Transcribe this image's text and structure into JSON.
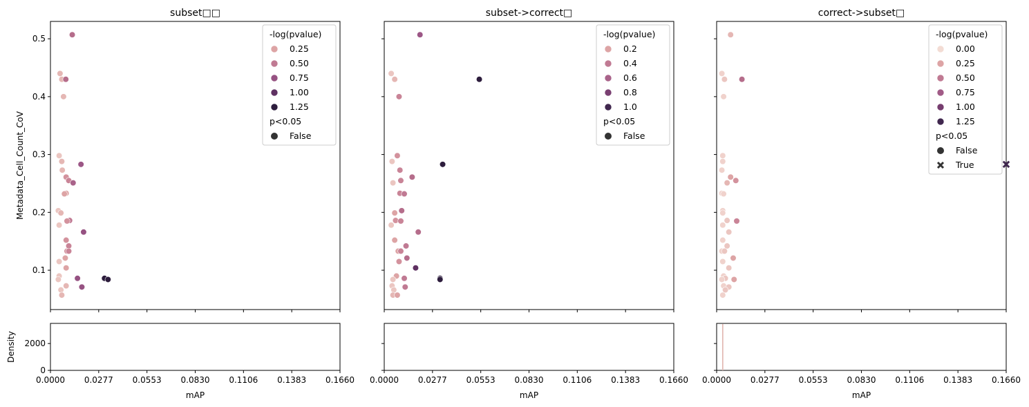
{
  "chart_data": [
    {
      "type": "scatter",
      "title": "subset□□",
      "xlabel": "mAP",
      "ylabel": "Metadata_Cell_Count_CoV",
      "xlim": [
        0,
        0.166
      ],
      "ylim": [
        0.032,
        0.53
      ],
      "xticks": [
        "0.0000",
        "0.0277",
        "0.0553",
        "0.0830",
        "0.1106",
        "0.1383",
        "0.1660"
      ],
      "yticks": [
        "0.1",
        "0.2",
        "0.3",
        "0.4",
        "0.5"
      ],
      "grid": false,
      "legend": {
        "placement": "top-right",
        "hue_title": "-log(pvalue)",
        "hue_entries": [
          {
            "label": "0.25",
            "color": "#dda4a5"
          },
          {
            "label": "0.50",
            "color": "#c07a93"
          },
          {
            "label": "0.75",
            "color": "#965282"
          },
          {
            "label": "1.00",
            "color": "#5f3162"
          },
          {
            "label": "1.25",
            "color": "#2d1d3d"
          }
        ],
        "style_title": "p<0.05",
        "style_entries": [
          {
            "label": "False",
            "marker": "circle"
          }
        ]
      },
      "points": [
        {
          "x": 0.0125,
          "y": 0.507,
          "color": "#b56d8b",
          "marker": "circle"
        },
        {
          "x": 0.0055,
          "y": 0.44,
          "color": "#e5b7b4",
          "marker": "circle"
        },
        {
          "x": 0.0065,
          "y": 0.43,
          "color": "#e5b7b4",
          "marker": "circle"
        },
        {
          "x": 0.0088,
          "y": 0.43,
          "color": "#b56d8b",
          "marker": "circle"
        },
        {
          "x": 0.0075,
          "y": 0.4,
          "color": "#e5b7b4",
          "marker": "circle"
        },
        {
          "x": 0.005,
          "y": 0.298,
          "color": "#ebc6c1",
          "marker": "circle"
        },
        {
          "x": 0.0065,
          "y": 0.288,
          "color": "#e5b7b4",
          "marker": "circle"
        },
        {
          "x": 0.0175,
          "y": 0.283,
          "color": "#9c5786",
          "marker": "circle"
        },
        {
          "x": 0.0068,
          "y": 0.273,
          "color": "#e5b7b4",
          "marker": "circle"
        },
        {
          "x": 0.009,
          "y": 0.261,
          "color": "#d3929d",
          "marker": "circle"
        },
        {
          "x": 0.0105,
          "y": 0.255,
          "color": "#c98497",
          "marker": "circle"
        },
        {
          "x": 0.013,
          "y": 0.251,
          "color": "#a9638a",
          "marker": "circle"
        },
        {
          "x": 0.009,
          "y": 0.233,
          "color": "#dda4a5",
          "marker": "circle"
        },
        {
          "x": 0.008,
          "y": 0.232,
          "color": "#dda4a5",
          "marker": "circle"
        },
        {
          "x": 0.0045,
          "y": 0.203,
          "color": "#ebc6c1",
          "marker": "circle"
        },
        {
          "x": 0.006,
          "y": 0.199,
          "color": "#e5b7b4",
          "marker": "circle"
        },
        {
          "x": 0.011,
          "y": 0.186,
          "color": "#c07a93",
          "marker": "circle"
        },
        {
          "x": 0.0095,
          "y": 0.185,
          "color": "#d3929d",
          "marker": "circle"
        },
        {
          "x": 0.005,
          "y": 0.178,
          "color": "#ebc6c1",
          "marker": "circle"
        },
        {
          "x": 0.019,
          "y": 0.166,
          "color": "#965282",
          "marker": "circle"
        },
        {
          "x": 0.009,
          "y": 0.152,
          "color": "#d3929d",
          "marker": "circle"
        },
        {
          "x": 0.0105,
          "y": 0.142,
          "color": "#c98497",
          "marker": "circle"
        },
        {
          "x": 0.0095,
          "y": 0.133,
          "color": "#d3929d",
          "marker": "circle"
        },
        {
          "x": 0.0105,
          "y": 0.133,
          "color": "#c98497",
          "marker": "circle"
        },
        {
          "x": 0.0085,
          "y": 0.121,
          "color": "#dda4a5",
          "marker": "circle"
        },
        {
          "x": 0.005,
          "y": 0.115,
          "color": "#ebc6c1",
          "marker": "circle"
        },
        {
          "x": 0.009,
          "y": 0.104,
          "color": "#dda4a5",
          "marker": "circle"
        },
        {
          "x": 0.005,
          "y": 0.09,
          "color": "#ebc6c1",
          "marker": "circle"
        },
        {
          "x": 0.0155,
          "y": 0.086,
          "color": "#965282",
          "marker": "circle"
        },
        {
          "x": 0.031,
          "y": 0.086,
          "color": "#2d1d3d",
          "marker": "circle"
        },
        {
          "x": 0.033,
          "y": 0.084,
          "color": "#2d1d3d",
          "marker": "circle"
        },
        {
          "x": 0.0045,
          "y": 0.084,
          "color": "#ebc6c1",
          "marker": "circle"
        },
        {
          "x": 0.009,
          "y": 0.073,
          "color": "#e5b7b4",
          "marker": "circle"
        },
        {
          "x": 0.018,
          "y": 0.071,
          "color": "#965282",
          "marker": "circle"
        },
        {
          "x": 0.006,
          "y": 0.066,
          "color": "#ebc6c1",
          "marker": "circle"
        },
        {
          "x": 0.0065,
          "y": 0.057,
          "color": "#e5b7b4",
          "marker": "circle"
        }
      ],
      "density": {
        "ylabel": "Density",
        "yticks": [
          "0",
          "2000"
        ],
        "ylim": [
          0,
          3500
        ],
        "spikes": []
      }
    },
    {
      "type": "scatter",
      "title": "subset->correct□",
      "xlabel": "mAP",
      "ylabel": "",
      "xlim": [
        0,
        0.166
      ],
      "ylim": [
        0.032,
        0.53
      ],
      "xticks": [
        "0.0000",
        "0.0277",
        "0.0553",
        "0.0830",
        "0.1106",
        "0.1383",
        "0.1660"
      ],
      "yticks": [],
      "grid": false,
      "legend": {
        "placement": "top-right",
        "hue_title": "-log(pvalue)",
        "hue_entries": [
          {
            "label": "0.2",
            "color": "#dda4a5"
          },
          {
            "label": "0.4",
            "color": "#c07a93"
          },
          {
            "label": "0.6",
            "color": "#a9638a"
          },
          {
            "label": "0.8",
            "color": "#7a4072"
          },
          {
            "label": "1.0",
            "color": "#40274e"
          }
        ],
        "style_title": "p<0.05",
        "style_entries": [
          {
            "label": "False",
            "marker": "circle"
          }
        ]
      },
      "points": [
        {
          "x": 0.0205,
          "y": 0.507,
          "color": "#9c5786",
          "marker": "circle"
        },
        {
          "x": 0.004,
          "y": 0.44,
          "color": "#ebc6c1",
          "marker": "circle"
        },
        {
          "x": 0.006,
          "y": 0.43,
          "color": "#e5b7b4",
          "marker": "circle"
        },
        {
          "x": 0.0545,
          "y": 0.43,
          "color": "#2d1d3d",
          "marker": "circle"
        },
        {
          "x": 0.0085,
          "y": 0.4,
          "color": "#c98497",
          "marker": "circle"
        },
        {
          "x": 0.0075,
          "y": 0.298,
          "color": "#d3929d",
          "marker": "circle"
        },
        {
          "x": 0.0045,
          "y": 0.288,
          "color": "#ebc6c1",
          "marker": "circle"
        },
        {
          "x": 0.0335,
          "y": 0.283,
          "color": "#2d1d3d",
          "marker": "circle"
        },
        {
          "x": 0.009,
          "y": 0.273,
          "color": "#c98497",
          "marker": "circle"
        },
        {
          "x": 0.016,
          "y": 0.261,
          "color": "#b56d8b",
          "marker": "circle"
        },
        {
          "x": 0.0095,
          "y": 0.255,
          "color": "#c98497",
          "marker": "circle"
        },
        {
          "x": 0.005,
          "y": 0.251,
          "color": "#ebc6c1",
          "marker": "circle"
        },
        {
          "x": 0.009,
          "y": 0.233,
          "color": "#c98497",
          "marker": "circle"
        },
        {
          "x": 0.0115,
          "y": 0.232,
          "color": "#c07a93",
          "marker": "circle"
        },
        {
          "x": 0.01,
          "y": 0.203,
          "color": "#b56d8b",
          "marker": "circle"
        },
        {
          "x": 0.006,
          "y": 0.199,
          "color": "#dda4a5",
          "marker": "circle"
        },
        {
          "x": 0.0065,
          "y": 0.186,
          "color": "#d3929d",
          "marker": "circle"
        },
        {
          "x": 0.0095,
          "y": 0.185,
          "color": "#c98497",
          "marker": "circle"
        },
        {
          "x": 0.004,
          "y": 0.178,
          "color": "#ebc6c1",
          "marker": "circle"
        },
        {
          "x": 0.0195,
          "y": 0.166,
          "color": "#b56d8b",
          "marker": "circle"
        },
        {
          "x": 0.006,
          "y": 0.152,
          "color": "#dda4a5",
          "marker": "circle"
        },
        {
          "x": 0.0125,
          "y": 0.142,
          "color": "#c07a93",
          "marker": "circle"
        },
        {
          "x": 0.008,
          "y": 0.133,
          "color": "#dda4a5",
          "marker": "circle"
        },
        {
          "x": 0.0095,
          "y": 0.133,
          "color": "#c98497",
          "marker": "circle"
        },
        {
          "x": 0.013,
          "y": 0.121,
          "color": "#b56d8b",
          "marker": "circle"
        },
        {
          "x": 0.0085,
          "y": 0.115,
          "color": "#d3929d",
          "marker": "circle"
        },
        {
          "x": 0.018,
          "y": 0.104,
          "color": "#5f3162",
          "marker": "circle"
        },
        {
          "x": 0.007,
          "y": 0.09,
          "color": "#dda4a5",
          "marker": "circle"
        },
        {
          "x": 0.032,
          "y": 0.086,
          "color": "#2d1d3d",
          "marker": "circle"
        },
        {
          "x": 0.0115,
          "y": 0.086,
          "color": "#c07a93",
          "marker": "circle"
        },
        {
          "x": 0.032,
          "y": 0.084,
          "color": "#2d1d3d",
          "marker": "circle"
        },
        {
          "x": 0.005,
          "y": 0.084,
          "color": "#ebc6c1",
          "marker": "circle"
        },
        {
          "x": 0.0045,
          "y": 0.073,
          "color": "#ebc6c1",
          "marker": "circle"
        },
        {
          "x": 0.012,
          "y": 0.071,
          "color": "#c07a93",
          "marker": "circle"
        },
        {
          "x": 0.0055,
          "y": 0.066,
          "color": "#ebc6c1",
          "marker": "circle"
        },
        {
          "x": 0.005,
          "y": 0.057,
          "color": "#e5b7b4",
          "marker": "circle"
        },
        {
          "x": 0.0075,
          "y": 0.057,
          "color": "#dda4a5",
          "marker": "circle"
        }
      ],
      "density": {
        "ylabel": "",
        "yticks": [],
        "ylim": [
          0,
          3500
        ],
        "spikes": []
      }
    },
    {
      "type": "scatter",
      "title": "correct->subset□",
      "xlabel": "mAP",
      "ylabel": "",
      "xlim": [
        0,
        0.166
      ],
      "ylim": [
        0.032,
        0.53
      ],
      "xticks": [
        "0.0000",
        "0.0277",
        "0.0553",
        "0.0830",
        "0.1106",
        "0.1383",
        "0.1660"
      ],
      "yticks": [],
      "grid": false,
      "legend": {
        "placement": "top-right",
        "hue_title": "-log(pvalue)",
        "hue_entries": [
          {
            "label": "0.00",
            "color": "#f3dcd4"
          },
          {
            "label": "0.25",
            "color": "#dda4a5"
          },
          {
            "label": "0.50",
            "color": "#c07a93"
          },
          {
            "label": "0.75",
            "color": "#a15b87"
          },
          {
            "label": "1.00",
            "color": "#763d6f"
          },
          {
            "label": "1.25",
            "color": "#40274e"
          }
        ],
        "style_title": "p<0.05",
        "style_entries": [
          {
            "label": "False",
            "marker": "circle"
          },
          {
            "label": "True",
            "marker": "x"
          }
        ]
      },
      "points": [
        {
          "x": 0.008,
          "y": 0.507,
          "color": "#e5b7b4",
          "marker": "circle"
        },
        {
          "x": 0.003,
          "y": 0.44,
          "color": "#f0d2cc",
          "marker": "circle"
        },
        {
          "x": 0.0045,
          "y": 0.43,
          "color": "#ebc6c1",
          "marker": "circle"
        },
        {
          "x": 0.0145,
          "y": 0.43,
          "color": "#b56d8b",
          "marker": "circle"
        },
        {
          "x": 0.004,
          "y": 0.4,
          "color": "#f0d2cc",
          "marker": "circle"
        },
        {
          "x": 0.0035,
          "y": 0.298,
          "color": "#f0d2cc",
          "marker": "circle"
        },
        {
          "x": 0.0035,
          "y": 0.288,
          "color": "#f0d2cc",
          "marker": "circle"
        },
        {
          "x": 0.166,
          "y": 0.283,
          "color": "#40274e",
          "marker": "x"
        },
        {
          "x": 0.003,
          "y": 0.273,
          "color": "#f0d2cc",
          "marker": "circle"
        },
        {
          "x": 0.008,
          "y": 0.261,
          "color": "#dda4a5",
          "marker": "circle"
        },
        {
          "x": 0.011,
          "y": 0.255,
          "color": "#d3929d",
          "marker": "circle"
        },
        {
          "x": 0.006,
          "y": 0.251,
          "color": "#e5b7b4",
          "marker": "circle"
        },
        {
          "x": 0.003,
          "y": 0.233,
          "color": "#f0d2cc",
          "marker": "circle"
        },
        {
          "x": 0.004,
          "y": 0.232,
          "color": "#f0d2cc",
          "marker": "circle"
        },
        {
          "x": 0.0035,
          "y": 0.203,
          "color": "#f0d2cc",
          "marker": "circle"
        },
        {
          "x": 0.0035,
          "y": 0.199,
          "color": "#f0d2cc",
          "marker": "circle"
        },
        {
          "x": 0.006,
          "y": 0.186,
          "color": "#ebc6c1",
          "marker": "circle"
        },
        {
          "x": 0.0115,
          "y": 0.185,
          "color": "#c98497",
          "marker": "circle"
        },
        {
          "x": 0.0035,
          "y": 0.178,
          "color": "#f0d2cc",
          "marker": "circle"
        },
        {
          "x": 0.007,
          "y": 0.166,
          "color": "#ebc6c1",
          "marker": "circle"
        },
        {
          "x": 0.0035,
          "y": 0.152,
          "color": "#f0d2cc",
          "marker": "circle"
        },
        {
          "x": 0.006,
          "y": 0.142,
          "color": "#ebc6c1",
          "marker": "circle"
        },
        {
          "x": 0.003,
          "y": 0.133,
          "color": "#f0d2cc",
          "marker": "circle"
        },
        {
          "x": 0.0045,
          "y": 0.133,
          "color": "#ebc6c1",
          "marker": "circle"
        },
        {
          "x": 0.0095,
          "y": 0.121,
          "color": "#dda4a5",
          "marker": "circle"
        },
        {
          "x": 0.0035,
          "y": 0.115,
          "color": "#f0d2cc",
          "marker": "circle"
        },
        {
          "x": 0.007,
          "y": 0.104,
          "color": "#ebc6c1",
          "marker": "circle"
        },
        {
          "x": 0.004,
          "y": 0.09,
          "color": "#f0d2cc",
          "marker": "circle"
        },
        {
          "x": 0.005,
          "y": 0.086,
          "color": "#ebc6c1",
          "marker": "circle"
        },
        {
          "x": 0.003,
          "y": 0.084,
          "color": "#f0d2cc",
          "marker": "circle"
        },
        {
          "x": 0.01,
          "y": 0.084,
          "color": "#dda4a5",
          "marker": "circle"
        },
        {
          "x": 0.004,
          "y": 0.073,
          "color": "#f0d2cc",
          "marker": "circle"
        },
        {
          "x": 0.007,
          "y": 0.071,
          "color": "#ebc6c1",
          "marker": "circle"
        },
        {
          "x": 0.005,
          "y": 0.066,
          "color": "#ebc6c1",
          "marker": "circle"
        },
        {
          "x": 0.0035,
          "y": 0.057,
          "color": "#f0d2cc",
          "marker": "circle"
        }
      ],
      "density": {
        "ylabel": "",
        "yticks": [],
        "ylim": [
          0,
          3500
        ],
        "spikes": [
          {
            "x": 0.0035,
            "color": "#e0b4ae"
          }
        ]
      }
    }
  ]
}
